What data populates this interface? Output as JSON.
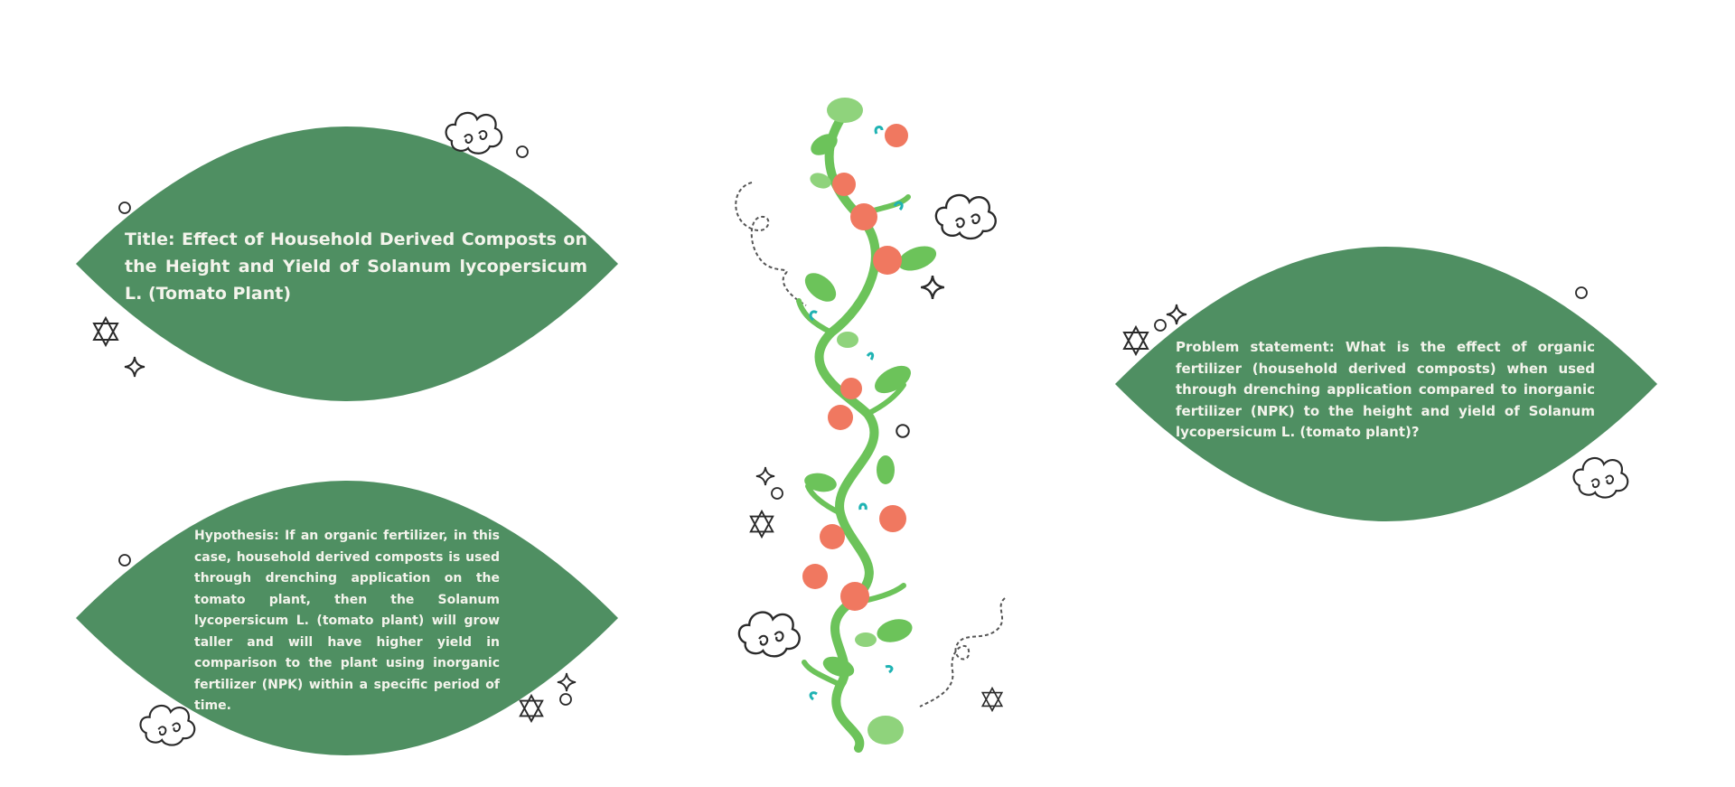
{
  "colors": {
    "background": "#ffffff",
    "leaf_fill": "#4f8f62",
    "leaf_text": "#f4f4ec",
    "doodle_stroke": "#2a2a2a",
    "vine_green": "#6cc35a",
    "leaf_light": "#8fd37c",
    "tomato": "#f07860",
    "tendril_teal": "#1fb3b3"
  },
  "cards": {
    "title": {
      "text": "Title: Effect of Household Derived Composts on the Height and Yield of Solanum lycopersicum L. (Tomato Plant)"
    },
    "hypothesis": {
      "text": "Hypothesis: If an organic fertilizer, in this case, household derived composts is used through drenching application on the tomato plant, then the Solanum lycopersicum L. (tomato plant) will grow taller and will have higher yield in comparison to the plant using inorganic fertilizer (NPK) within a specific period of time."
    },
    "problem": {
      "text": "Problem statement: What is the effect of organic fertilizer (household derived composts) when used through drenching application compared to inorganic fertilizer (NPK) to the height and yield of Solanum lycopersicum L. (tomato plant)?"
    }
  },
  "icons": {
    "cloud": "cloud-doodle-icon",
    "star": "star-doodle-icon",
    "sparkle": "sparkle-doodle-icon",
    "circle": "circle-doodle-icon",
    "swirl": "swirl-doodle-icon",
    "vine": "tomato-vine-illustration"
  }
}
